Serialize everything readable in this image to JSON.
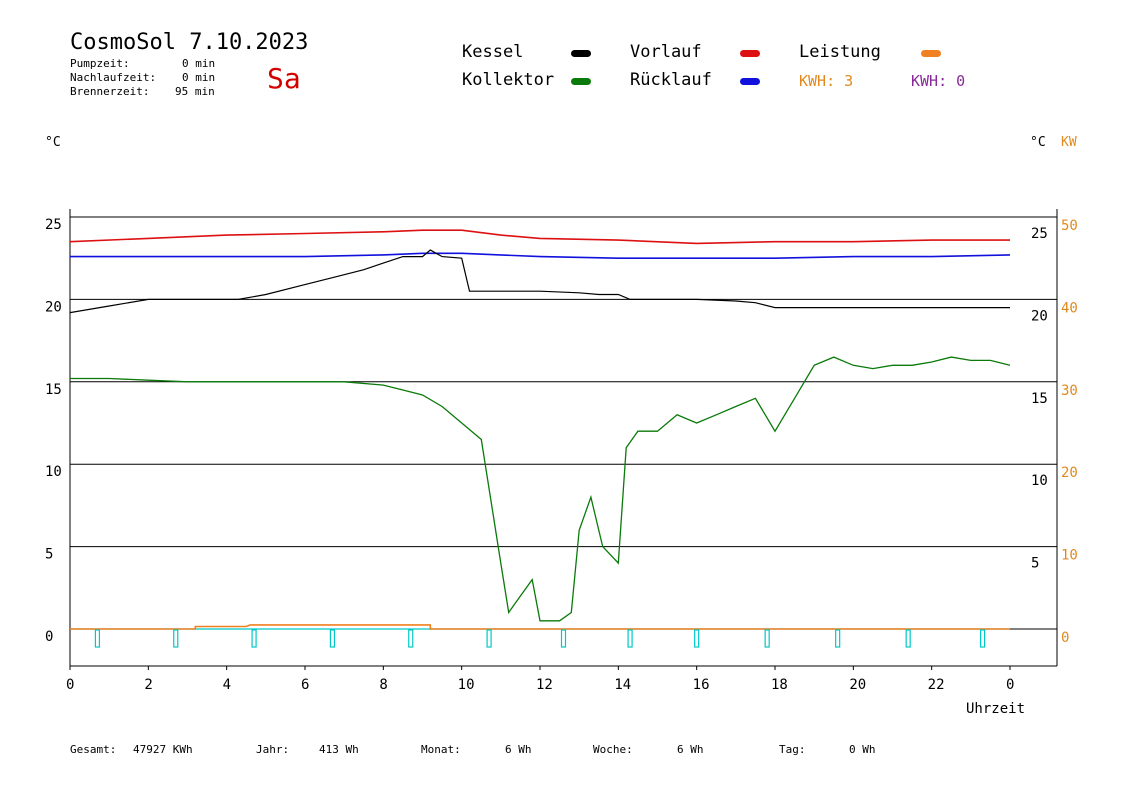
{
  "header": {
    "title": "CosmoSol 7.10.2023",
    "day": "Sa",
    "day_color": "#d40000",
    "stats": [
      {
        "label": "Pumpzeit:",
        "value": "0 min"
      },
      {
        "label": "Nachlaufzeit:",
        "value": "0 min"
      },
      {
        "label": "Brennerzeit:",
        "value": "95 min"
      }
    ]
  },
  "legend": {
    "kessel": {
      "label": "Kessel",
      "color": "#000000"
    },
    "kollektor": {
      "label": "Kollektor",
      "color": "#0a7a0a"
    },
    "vorlauf": {
      "label": "Vorlauf",
      "color": "#dd1111"
    },
    "ruecklauf": {
      "label": "Rücklauf",
      "color": "#1111dd"
    },
    "leistung": {
      "label": "Leistung",
      "color": "#f08020"
    },
    "kwh1": {
      "label": "KWH: 3",
      "color": "#e08a20"
    },
    "kwh2": {
      "label": "KWH: 0",
      "color": "#8a2a9a"
    }
  },
  "axis_units": {
    "left": "°C",
    "right_c": "°C",
    "right_kw": "KW",
    "kw_color": "#e08a20",
    "xlabel": "Uhrzeit"
  },
  "footer": {
    "gesamt_label": "Gesamt:",
    "gesamt_value": "47927 KWh",
    "jahr_label": "Jahr:",
    "jahr_value": "413 Wh",
    "monat_label": "Monat:",
    "monat_value": "6 Wh",
    "woche_label": "Woche:",
    "woche_value": "6 Wh",
    "tag_label": "Tag:",
    "tag_value": "0 Wh"
  },
  "chart_data": {
    "type": "line",
    "x_ticks": [
      "0",
      "2",
      "4",
      "6",
      "8",
      "10",
      "12",
      "14",
      "16",
      "18",
      "20",
      "22",
      "0"
    ],
    "xlim": [
      0,
      24
    ],
    "left_ticks": [
      "25",
      "20",
      "15",
      "10",
      "5",
      "0"
    ],
    "right_c_ticks": [
      "25",
      "20",
      "15",
      "10",
      "5"
    ],
    "right_kw_ticks": [
      "50",
      "40",
      "30",
      "20",
      "10",
      "0"
    ],
    "ylim_left": [
      -2,
      25
    ],
    "grid": true,
    "series": [
      {
        "name": "Vorlauf",
        "color": "#dd1111",
        "x": [
          0,
          2,
          4,
          6,
          8,
          9,
          10,
          11,
          12,
          14,
          16,
          18,
          20,
          22,
          24
        ],
        "y": [
          23.5,
          23.7,
          23.9,
          24.0,
          24.1,
          24.2,
          24.2,
          23.9,
          23.7,
          23.6,
          23.4,
          23.5,
          23.5,
          23.6,
          23.6
        ]
      },
      {
        "name": "Rücklauf",
        "color": "#1111dd",
        "x": [
          0,
          2,
          4,
          6,
          8,
          9,
          10,
          12,
          14,
          16,
          18,
          20,
          22,
          24
        ],
        "y": [
          22.6,
          22.6,
          22.6,
          22.6,
          22.7,
          22.8,
          22.8,
          22.6,
          22.5,
          22.5,
          22.5,
          22.6,
          22.6,
          22.7
        ]
      },
      {
        "name": "Kessel",
        "color": "#000000",
        "x": [
          0,
          1,
          2,
          2.2,
          4.3,
          5,
          6,
          7,
          7.5,
          8,
          8.5,
          9,
          9.2,
          9.5,
          10,
          10.2,
          12,
          13,
          13.5,
          14,
          14.3,
          15,
          16,
          17,
          17.5,
          18,
          18.5,
          19,
          20,
          22,
          24
        ],
        "y": [
          19.2,
          19.6,
          20.0,
          20.0,
          20.0,
          20.3,
          20.9,
          21.5,
          21.8,
          22.2,
          22.6,
          22.6,
          23.0,
          22.6,
          22.5,
          20.5,
          20.5,
          20.4,
          20.3,
          20.3,
          20.0,
          20.0,
          20.0,
          19.9,
          19.8,
          19.5,
          19.5,
          19.5,
          19.5,
          19.5,
          19.5
        ]
      },
      {
        "name": "Kollektor",
        "color": "#0a7a0a",
        "x": [
          0,
          1,
          2,
          3,
          4,
          5,
          6,
          7,
          8,
          8.5,
          9,
          9.5,
          10,
          10.5,
          10.8,
          11,
          11.2,
          11.5,
          11.8,
          12,
          12.5,
          12.8,
          13,
          13.3,
          13.6,
          14,
          14.2,
          14.5,
          15,
          15.5,
          16,
          16.5,
          17,
          17.5,
          18,
          18.5,
          19,
          19.5,
          20,
          20.5,
          21,
          21.5,
          22,
          22.5,
          23,
          23.5,
          24
        ],
        "y": [
          15.2,
          15.2,
          15.1,
          15.0,
          15.0,
          15.0,
          15.0,
          15.0,
          14.8,
          14.5,
          14.2,
          13.5,
          12.5,
          11.5,
          7,
          4,
          1,
          2,
          3,
          0.5,
          0.5,
          1,
          6,
          8,
          5,
          4,
          11,
          12,
          12,
          13,
          12.5,
          13,
          13.5,
          14,
          12,
          14,
          16,
          16.5,
          16,
          15.8,
          16,
          16,
          16.2,
          16.5,
          16.3,
          16.3,
          16
        ]
      },
      {
        "name": "Leistung",
        "color": "#f08020",
        "x": [
          0,
          3.2,
          3.2,
          4.5,
          4.6,
          9.2,
          9.2,
          24
        ],
        "y": [
          0,
          0,
          0.15,
          0.15,
          0.25,
          0.25,
          0,
          0
        ]
      }
    ],
    "pump_markers_hours": [
      0.7,
      2.7,
      4.7,
      6.7,
      8.7,
      10.7,
      12.6,
      14.3,
      16,
      17.8,
      19.6,
      21.4,
      23.3
    ],
    "pump_color": "#00c8c8"
  }
}
